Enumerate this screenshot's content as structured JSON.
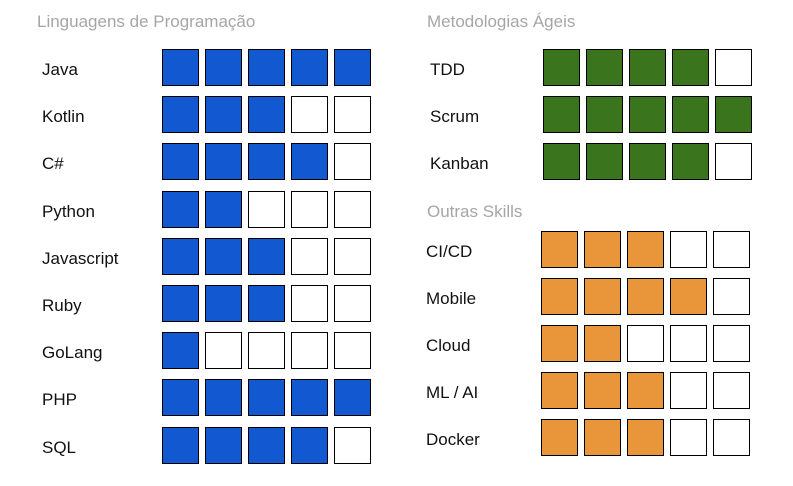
{
  "colors": {
    "languages": "#1259d1",
    "agile": "#3a741c",
    "other": "#e9953a",
    "empty": "#ffffff",
    "title": "#a6a6a6"
  },
  "max_level": 5,
  "languages": {
    "title": "Linguagens de Programação",
    "skills": [
      {
        "label": "Java",
        "level": 5
      },
      {
        "label": "Kotlin",
        "level": 3
      },
      {
        "label": "C#",
        "level": 4
      },
      {
        "label": "Python",
        "level": 2
      },
      {
        "label": "Javascript",
        "level": 3
      },
      {
        "label": "Ruby",
        "level": 3
      },
      {
        "label": "GoLang",
        "level": 1
      },
      {
        "label": "PHP",
        "level": 5
      },
      {
        "label": "SQL",
        "level": 4
      }
    ]
  },
  "agile": {
    "title": "Metodologias Ágeis",
    "skills": [
      {
        "label": "TDD",
        "level": 4
      },
      {
        "label": "Scrum",
        "level": 5
      },
      {
        "label": "Kanban",
        "level": 4
      }
    ]
  },
  "other": {
    "title": "Outras Skills",
    "skills": [
      {
        "label": "CI/CD",
        "level": 3
      },
      {
        "label": "Mobile",
        "level": 4
      },
      {
        "label": "Cloud",
        "level": 2
      },
      {
        "label": "ML / AI",
        "level": 3
      },
      {
        "label": "Docker",
        "level": 3
      }
    ]
  }
}
